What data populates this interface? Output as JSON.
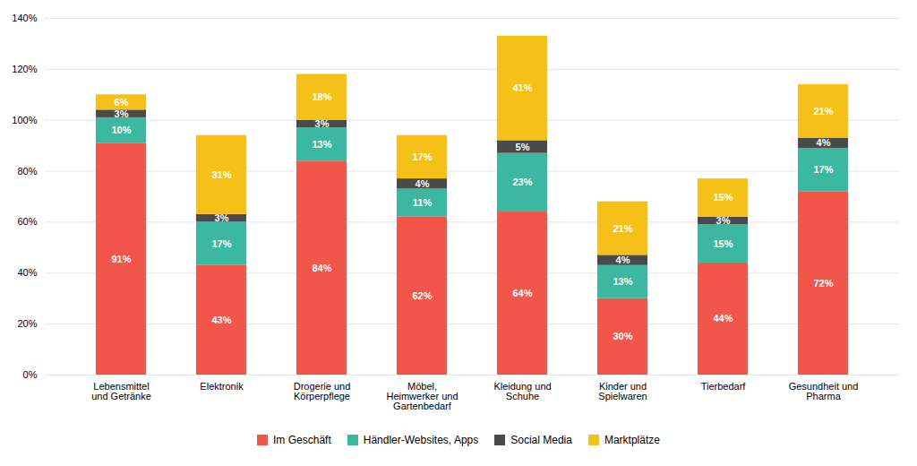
{
  "chart_data": {
    "type": "bar",
    "stacked": true,
    "categories": [
      "Lebensmittel\nund Getränke",
      "Elektronik",
      "Drogerie und\nKörperpflege",
      "Möbel,\nHeimwerker und\nGartenbedarf",
      "Kleidung und\nSchuhe",
      "Kinder und\nSpielwaren",
      "Tierbedarf",
      "Gesundheit und\nPharma"
    ],
    "series": [
      {
        "name": "Im Geschäft",
        "color": "#F0574A",
        "values": [
          91,
          43,
          84,
          62,
          64,
          30,
          44,
          72
        ],
        "value_labels": [
          "91%",
          "43%",
          "84%",
          "62%",
          "64%",
          "30%",
          "44%",
          "72%"
        ]
      },
      {
        "name": "Händler-Websites, Apps",
        "color": "#3CB8A0",
        "values": [
          10,
          17,
          13,
          11,
          23,
          13,
          15,
          17
        ],
        "value_labels": [
          "10%",
          "17%",
          "13%",
          "11%",
          "23%",
          "13%",
          "15%",
          "17%"
        ]
      },
      {
        "name": "Social Media",
        "color": "#4A4A4A",
        "values": [
          3,
          3,
          3,
          4,
          5,
          4,
          3,
          4
        ],
        "value_labels": [
          "3%",
          "3%",
          "3%",
          "4%",
          "5%",
          "4%",
          "3%",
          "4%"
        ]
      },
      {
        "name": "Marktplätze",
        "color": "#F5C118",
        "values": [
          6,
          31,
          18,
          17,
          41,
          21,
          15,
          21
        ],
        "value_labels": [
          "6%",
          "31%",
          "18%",
          "17%",
          "41%",
          "21%",
          "15%",
          "21%"
        ]
      }
    ],
    "ylim": [
      0,
      140
    ],
    "yticks": [
      {
        "value": 0,
        "label": "0%"
      },
      {
        "value": 20,
        "label": "20%"
      },
      {
        "value": 40,
        "label": "40%"
      },
      {
        "value": 60,
        "label": "60%"
      },
      {
        "value": 80,
        "label": "80%"
      },
      {
        "value": 100,
        "label": "100%"
      },
      {
        "value": 120,
        "label": "120%"
      },
      {
        "value": 140,
        "label": "140%"
      }
    ],
    "grid": true,
    "data_labels": true,
    "legend": "bottom"
  }
}
